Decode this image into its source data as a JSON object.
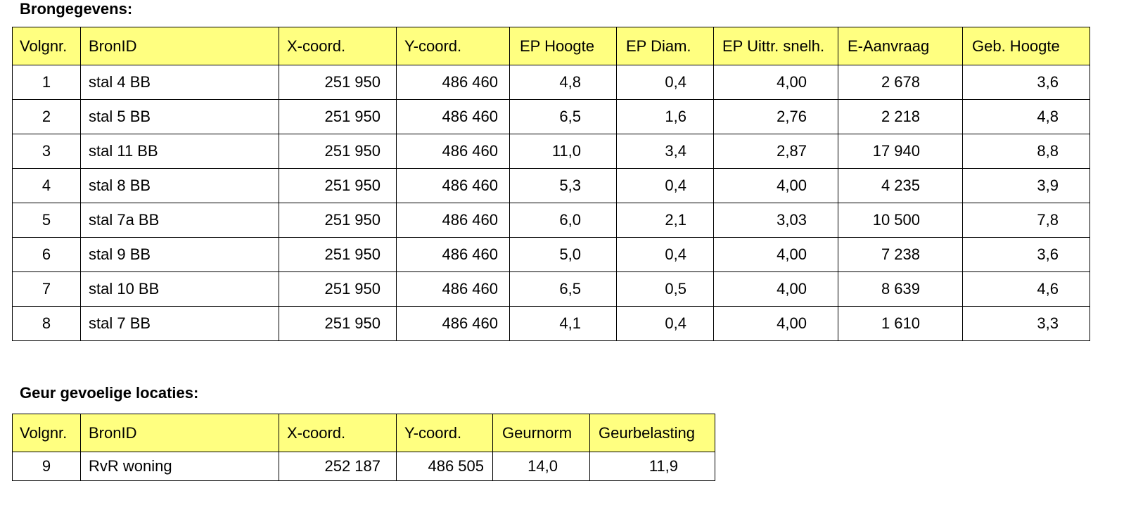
{
  "brongegevens": {
    "title": "Brongegevens:",
    "headers": [
      "Volgnr.",
      "BronID",
      "X-coord.",
      "Y-coord.",
      "EP Hoogte",
      "EP Diam.",
      "EP Uittr. snelh.",
      "E-Aanvraag",
      "Geb. Hoogte"
    ],
    "rows": [
      [
        "1",
        "stal 4 BB",
        "251 950",
        "486 460",
        "4,8",
        "0,4",
        "4,00",
        "2 678",
        "3,6"
      ],
      [
        "2",
        "stal 5 BB",
        "251 950",
        "486 460",
        "6,5",
        "1,6",
        "2,76",
        "2 218",
        "4,8"
      ],
      [
        "3",
        "stal 11 BB",
        "251 950",
        "486 460",
        "11,0",
        "3,4",
        "2,87",
        "17 940",
        "8,8"
      ],
      [
        "4",
        "stal 8 BB",
        "251 950",
        "486 460",
        "5,3",
        "0,4",
        "4,00",
        "4 235",
        "3,9"
      ],
      [
        "5",
        "stal 7a BB",
        "251 950",
        "486 460",
        "6,0",
        "2,1",
        "3,03",
        "10 500",
        "7,8"
      ],
      [
        "6",
        "stal 9 BB",
        "251 950",
        "486 460",
        "5,0",
        "0,4",
        "4,00",
        "7 238",
        "3,6"
      ],
      [
        "7",
        "stal 10 BB",
        "251 950",
        "486 460",
        "6,5",
        "0,5",
        "4,00",
        "8 639",
        "4,6"
      ],
      [
        "8",
        "stal 7 BB",
        "251 950",
        "486 460",
        "4,1",
        "0,4",
        "4,00",
        "1 610",
        "3,3"
      ]
    ]
  },
  "geur": {
    "title": "Geur gevoelige locaties:",
    "headers": [
      "Volgnr.",
      "BronID",
      "X-coord.",
      "Y-coord.",
      "Geurnorm",
      "Geurbelasting"
    ],
    "rows": [
      [
        "9",
        "RvR woning",
        "252 187",
        "486 505",
        "14,0",
        "11,9"
      ]
    ]
  },
  "colors": {
    "header_background": "#ffff80",
    "border": "#000000"
  }
}
